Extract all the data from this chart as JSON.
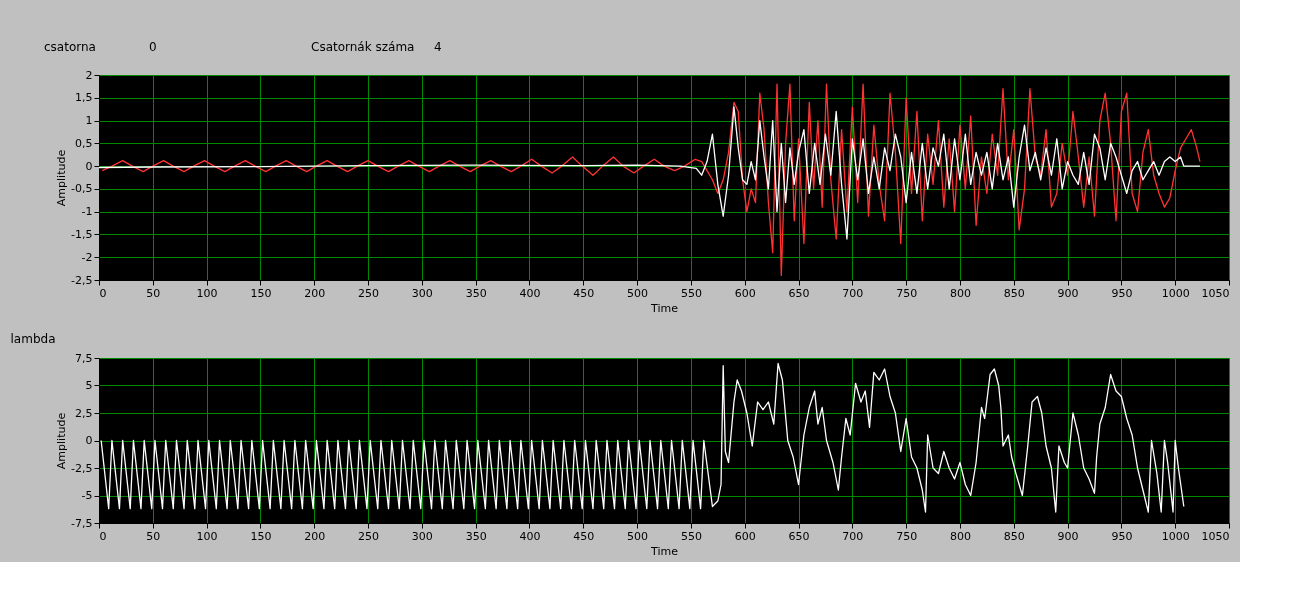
{
  "chart_data": [
    {
      "type": "line",
      "xlabel": "Time",
      "ylabel": "Amplitude",
      "annotations": [
        "csatorna",
        "0",
        "Csatornák száma",
        "4"
      ],
      "xlim": [
        0,
        1050
      ],
      "xticks": [
        0,
        50,
        100,
        150,
        200,
        250,
        300,
        350,
        400,
        450,
        500,
        550,
        600,
        650,
        700,
        750,
        800,
        850,
        900,
        950,
        1000,
        1050
      ],
      "ylim": [
        -2.5,
        2
      ],
      "yticks": [
        {
          "value": -2.5,
          "label": "-2,5"
        },
        -2,
        {
          "value": -1.5,
          "label": "-1,5"
        },
        -1,
        {
          "value": -0.5,
          "label": "-0,5"
        },
        0,
        {
          "value": 0.5,
          "label": "0,5"
        },
        1,
        {
          "value": 1.5,
          "label": "1,5"
        },
        2
      ],
      "grid": true,
      "series": [
        {
          "color": "#ff3333",
          "x": [
            3,
            12,
            22,
            31,
            41,
            50,
            60,
            69,
            79,
            88,
            98,
            107,
            117,
            126,
            136,
            145,
            155,
            164,
            174,
            183,
            193,
            202,
            212,
            221,
            231,
            240,
            250,
            259,
            269,
            278,
            288,
            297,
            307,
            316,
            326,
            335,
            345,
            354,
            364,
            373,
            383,
            392,
            402,
            411,
            421,
            430,
            440,
            449,
            459,
            468,
            478,
            487,
            497,
            506,
            516,
            525,
            535,
            544,
            554,
            560,
            565,
            570,
            575,
            580,
            585,
            590,
            594,
            598,
            602,
            606,
            610,
            614,
            618,
            622,
            626,
            630,
            634,
            638,
            642,
            646,
            650,
            655,
            660,
            664,
            668,
            672,
            676,
            680,
            685,
            690,
            695,
            700,
            705,
            710,
            715,
            720,
            725,
            730,
            735,
            740,
            745,
            750,
            755,
            760,
            765,
            770,
            775,
            780,
            785,
            790,
            795,
            800,
            805,
            810,
            815,
            820,
            825,
            830,
            835,
            840,
            845,
            850,
            855,
            860,
            865,
            870,
            875,
            880,
            885,
            890,
            895,
            900,
            905,
            910,
            915,
            920,
            925,
            930,
            935,
            940,
            945,
            950,
            955,
            960,
            965,
            970,
            975,
            980,
            985,
            990,
            995,
            1000,
            1005,
            1010,
            1015,
            1020,
            1023
          ],
          "values": [
            -0.1,
            0,
            0.12,
            0,
            -0.12,
            0,
            0.12,
            0,
            -0.12,
            0,
            0.12,
            0,
            -0.12,
            0,
            0.12,
            0,
            -0.12,
            0,
            0.12,
            0,
            -0.12,
            0,
            0.12,
            0,
            -0.12,
            0,
            0.12,
            0,
            -0.12,
            0,
            0.12,
            0,
            -0.12,
            0,
            0.12,
            0,
            -0.12,
            0,
            0.12,
            0,
            -0.12,
            0,
            0.15,
            0,
            -0.15,
            0,
            0.2,
            0,
            -0.2,
            0,
            0.2,
            0,
            -0.15,
            0,
            0.15,
            0,
            -0.1,
            0,
            0.15,
            0.1,
            -0.1,
            -0.3,
            -0.6,
            -0.3,
            0.3,
            1.4,
            1.2,
            -0.3,
            -1.0,
            -0.5,
            -0.8,
            1.6,
            0.8,
            -0.8,
            -1.9,
            1.8,
            -2.4,
            0.5,
            1.8,
            -1.2,
            0.6,
            -1.7,
            1.4,
            -0.5,
            1.0,
            -0.9,
            1.8,
            -0.3,
            -1.6,
            0.8,
            -1.0,
            1.3,
            -0.8,
            1.8,
            -1.1,
            0.9,
            -0.4,
            -1.2,
            1.6,
            0.3,
            -1.7,
            1.5,
            -0.6,
            1.2,
            -1.2,
            0.7,
            -0.4,
            1.0,
            -0.9,
            0.6,
            -1.0,
            0.9,
            -0.5,
            1.1,
            -1.3,
            0.2,
            -0.6,
            0.7,
            -0.2,
            1.7,
            -0.3,
            0.8,
            -1.4,
            -0.5,
            1.7,
            0.2,
            -0.2,
            0.8,
            -0.9,
            -0.6,
            0.5,
            -0.2,
            1.2,
            0.2,
            -0.9,
            0.2,
            -1.1,
            1.0,
            1.6,
            0.5,
            -1.2,
            1.2,
            1.6,
            -0.6,
            -1.0,
            0.3,
            0.8,
            -0.2,
            -0.6,
            -0.9,
            -0.7,
            -0.1,
            0.4,
            0.6,
            0.8,
            0.4,
            0.1
          ]
        },
        {
          "color": "#ffffff",
          "x": [
            0,
            50,
            150,
            250,
            350,
            450,
            500,
            540,
            555,
            560,
            565,
            570,
            575,
            580,
            585,
            590,
            594,
            598,
            602,
            606,
            610,
            614,
            618,
            622,
            626,
            630,
            634,
            638,
            642,
            646,
            650,
            655,
            660,
            665,
            670,
            675,
            680,
            685,
            690,
            695,
            700,
            705,
            710,
            715,
            720,
            725,
            730,
            735,
            740,
            745,
            750,
            755,
            760,
            765,
            770,
            775,
            780,
            785,
            790,
            795,
            800,
            805,
            810,
            815,
            820,
            825,
            830,
            835,
            840,
            845,
            850,
            855,
            860,
            865,
            870,
            875,
            880,
            885,
            890,
            895,
            900,
            905,
            910,
            915,
            920,
            925,
            930,
            935,
            940,
            945,
            950,
            955,
            960,
            965,
            970,
            975,
            980,
            985,
            990,
            995,
            1000,
            1005,
            1008,
            1023
          ],
          "values": [
            -0.03,
            -0.02,
            -0.01,
            0.01,
            0.02,
            0.01,
            0.02,
            0.0,
            -0.05,
            -0.2,
            0.1,
            0.7,
            -0.4,
            -1.1,
            -0.2,
            1.3,
            0.4,
            -0.3,
            -0.4,
            0.1,
            -0.3,
            1.0,
            0.2,
            -0.5,
            1.0,
            -1.0,
            0.5,
            -0.8,
            0.4,
            -0.4,
            0.3,
            0.8,
            -0.6,
            0.5,
            -0.4,
            0.7,
            -0.2,
            1.2,
            -0.4,
            -1.6,
            0.6,
            -0.3,
            0.6,
            -0.6,
            0.2,
            -0.5,
            0.4,
            -0.1,
            0.7,
            0.2,
            -0.8,
            0.3,
            -0.6,
            0.5,
            -0.5,
            0.4,
            0.0,
            0.7,
            -0.5,
            0.6,
            -0.3,
            0.7,
            -0.4,
            0.3,
            -0.2,
            0.3,
            -0.5,
            0.5,
            -0.3,
            0.2,
            -0.9,
            0.2,
            0.9,
            -0.1,
            0.3,
            -0.3,
            0.4,
            -0.2,
            0.6,
            -0.5,
            0.1,
            -0.2,
            -0.4,
            0.3,
            -0.4,
            0.7,
            0.4,
            -0.3,
            0.5,
            0.2,
            -0.2,
            -0.6,
            -0.1,
            0.1,
            -0.3,
            -0.1,
            0.1,
            -0.2,
            0.1,
            0.2,
            0.1,
            0.2,
            0.0,
            0.0
          ]
        }
      ]
    },
    {
      "type": "line",
      "title": "lambda",
      "xlabel": "Time",
      "ylabel": "Amplitude",
      "xlim": [
        0,
        1050
      ],
      "xticks": [
        0,
        50,
        100,
        150,
        200,
        250,
        300,
        350,
        400,
        450,
        500,
        550,
        600,
        650,
        700,
        750,
        800,
        850,
        900,
        950,
        1000,
        1050
      ],
      "ylim": [
        -7.5,
        7.5
      ],
      "yticks": [
        {
          "value": -7.5,
          "label": "-7,5"
        },
        -5,
        {
          "value": -2.5,
          "label": "-2,5"
        },
        0,
        {
          "value": 2.5,
          "label": "2,5"
        },
        5,
        {
          "value": 7.5,
          "label": "7,5"
        }
      ],
      "grid": true,
      "series": [
        {
          "color": "#ffffff",
          "x": [
            2,
            9,
            12,
            19,
            22,
            29,
            32,
            39,
            42,
            49,
            52,
            59,
            62,
            69,
            72,
            79,
            82,
            89,
            92,
            99,
            102,
            109,
            112,
            119,
            122,
            129,
            132,
            139,
            142,
            149,
            152,
            159,
            162,
            169,
            172,
            179,
            182,
            189,
            192,
            199,
            202,
            209,
            212,
            219,
            222,
            229,
            232,
            239,
            242,
            249,
            252,
            259,
            262,
            269,
            272,
            279,
            282,
            289,
            292,
            299,
            302,
            309,
            312,
            319,
            322,
            329,
            332,
            339,
            342,
            349,
            352,
            359,
            362,
            369,
            372,
            379,
            382,
            389,
            392,
            399,
            402,
            409,
            412,
            419,
            422,
            429,
            432,
            439,
            442,
            449,
            452,
            459,
            462,
            469,
            472,
            479,
            482,
            489,
            492,
            499,
            502,
            509,
            512,
            519,
            522,
            529,
            532,
            539,
            542,
            549,
            552,
            559,
            562,
            570,
            575,
            578,
            580,
            582,
            585,
            590,
            593,
            597,
            602,
            607,
            612,
            617,
            622,
            627,
            631,
            635,
            640,
            645,
            650,
            655,
            660,
            665,
            668,
            672,
            676,
            682,
            687,
            690,
            694,
            698,
            703,
            708,
            712,
            716,
            720,
            725,
            730,
            735,
            740,
            745,
            750,
            755,
            760,
            765,
            768,
            770,
            775,
            780,
            785,
            790,
            795,
            800,
            805,
            810,
            815,
            820,
            823,
            828,
            832,
            836,
            838,
            840,
            845,
            848,
            852,
            855,
            858,
            863,
            867,
            872,
            876,
            880,
            885,
            889,
            892,
            897,
            900,
            905,
            910,
            915,
            920,
            925,
            927,
            930,
            935,
            940,
            945,
            950,
            955,
            960,
            965,
            970,
            975,
            978,
            983,
            987,
            990,
            993,
            998,
            1000,
            1003,
            1008
          ],
          "values": [
            0,
            -6.2,
            0,
            -6.2,
            0,
            -6.2,
            0,
            -6.2,
            0,
            -6.2,
            0,
            -6.2,
            0,
            -6.2,
            0,
            -6.2,
            0,
            -6.2,
            0,
            -6.2,
            0,
            -6.2,
            0,
            -6.2,
            0,
            -6.2,
            0,
            -6.2,
            0,
            -6.2,
            0,
            -6.2,
            0,
            -6.2,
            0,
            -6.2,
            0,
            -6.2,
            0,
            -6.2,
            0,
            -6.2,
            0,
            -6.2,
            0,
            -6.2,
            0,
            -6.2,
            0,
            -6.2,
            0,
            -6.2,
            0,
            -6.2,
            0,
            -6.2,
            0,
            -6.2,
            0,
            -6.2,
            0,
            -6.2,
            0,
            -6.2,
            0,
            -6.2,
            0,
            -6.2,
            0,
            -6.2,
            0,
            -6.2,
            0,
            -6.2,
            0,
            -6.2,
            0,
            -6.2,
            0,
            -6.2,
            0,
            -6.2,
            0,
            -6.2,
            0,
            -6.2,
            0,
            -6.2,
            0,
            -6.2,
            0,
            -6.2,
            0,
            -6.2,
            0,
            -6.2,
            0,
            -6.2,
            0,
            -6.2,
            0,
            -6.2,
            0,
            -6.2,
            0,
            -6.2,
            0,
            -6.2,
            0,
            -6.2,
            0,
            -6.2,
            0,
            -6.0,
            -5.5,
            -4.0,
            6.8,
            -1.0,
            -2.0,
            3.5,
            5.5,
            4.5,
            2.5,
            -0.5,
            3.5,
            2.8,
            3.5,
            1.5,
            7.0,
            5.5,
            0.0,
            -1.5,
            -4.0,
            0.5,
            3.0,
            4.5,
            1.5,
            3.0,
            0.0,
            -2.0,
            -4.5,
            -1.5,
            2.0,
            0.5,
            5.2,
            3.5,
            4.5,
            1.2,
            6.2,
            5.5,
            6.5,
            4.0,
            2.5,
            -1.0,
            2.0,
            -1.5,
            -2.5,
            -4.5,
            -6.5,
            0.5,
            -2.5,
            -3.0,
            -1.0,
            -2.5,
            -3.5,
            -2.0,
            -4.0,
            -5.0,
            -2.0,
            3.0,
            2.0,
            6.0,
            6.5,
            5.0,
            3.0,
            -0.5,
            0.5,
            -1.5,
            -3.0,
            -4.0,
            -5.0,
            -0.5,
            3.5,
            4.0,
            2.5,
            -0.5,
            -2.5,
            -6.5,
            -0.5,
            -2.0,
            -2.5,
            2.5,
            0.5,
            -2.5,
            -3.5,
            -4.8,
            -1.5,
            1.5,
            3.0,
            6.0,
            4.5,
            4.0,
            2.0,
            0.5,
            -2.5,
            -4.5,
            -6.5,
            0.0,
            -3.0,
            -6.5,
            0.0,
            -2.0,
            -6.5,
            0.0,
            -2.5,
            -6.0
          ]
        }
      ]
    }
  ]
}
